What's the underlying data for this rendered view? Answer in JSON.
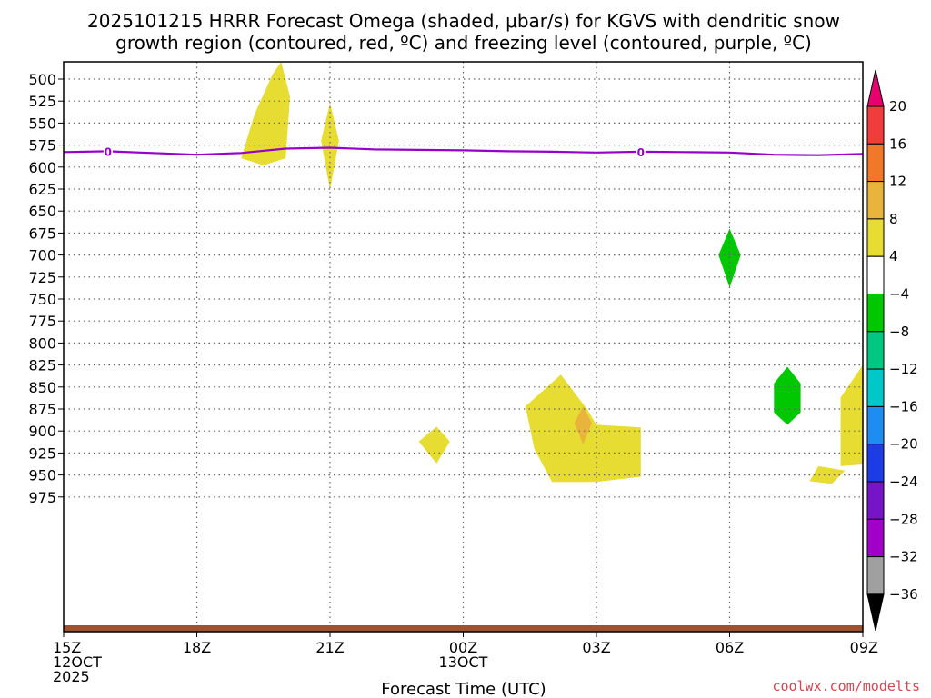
{
  "chart_data": {
    "type": "contour",
    "title_lines": [
      "2025101215 HRRR Forecast Omega (shaded, μbar/s) for KGVS with dendritic snow",
      "growth region (contoured, red, ºC) and freezing level (contoured, purple, ºC)"
    ],
    "xlabel": "Forecast Time (UTC)",
    "credit": "coolwx.com/modelts",
    "y_ticks": [
      500,
      525,
      550,
      575,
      600,
      625,
      650,
      675,
      700,
      725,
      750,
      775,
      800,
      825,
      850,
      875,
      900,
      925,
      950,
      975
    ],
    "x_ticks": [
      {
        "h": 0,
        "lines": [
          "15Z",
          "12OCT",
          "2025"
        ]
      },
      {
        "h": 3,
        "lines": [
          "18Z"
        ]
      },
      {
        "h": 6,
        "lines": [
          "21Z"
        ]
      },
      {
        "h": 9,
        "lines": [
          "00Z",
          "13OCT"
        ]
      },
      {
        "h": 12,
        "lines": [
          "03Z"
        ]
      },
      {
        "h": 15,
        "lines": [
          "06Z"
        ]
      },
      {
        "h": 18,
        "lines": [
          "09Z"
        ]
      }
    ],
    "colorbar": {
      "labels": [
        "20",
        "16",
        "12",
        "8",
        "4",
        "−4",
        "−8",
        "−12",
        "−16",
        "−20",
        "−24",
        "−28",
        "−32",
        "−36"
      ],
      "colors": [
        "#e8006e",
        "#f03c3c",
        "#f07828",
        "#e8b43c",
        "#e6dc32",
        "#ffffff",
        "#00c800",
        "#00c882",
        "#00c8c8",
        "#1e8cf0",
        "#1e3ce6",
        "#7814c8",
        "#a000c8",
        "#a0a0a0",
        "#000000"
      ]
    },
    "freezing_level": {
      "label": "0",
      "color": "#9600c8",
      "points": [
        [
          0,
          583
        ],
        [
          1,
          582
        ],
        [
          2,
          584
        ],
        [
          3,
          586
        ],
        [
          4,
          584
        ],
        [
          5,
          579
        ],
        [
          6,
          578
        ],
        [
          7,
          580
        ],
        [
          8,
          580.5
        ],
        [
          9,
          581
        ],
        [
          10,
          582
        ],
        [
          11,
          582.5
        ],
        [
          12,
          583.5
        ],
        [
          13,
          582.5
        ],
        [
          14,
          583
        ],
        [
          15,
          583.5
        ],
        [
          16,
          586
        ],
        [
          17,
          586.5
        ],
        [
          18,
          585
        ]
      ],
      "label_hours": [
        1,
        13
      ]
    },
    "omega_regions": [
      {
        "value_color": "#e6dc32",
        "points": [
          [
            4.7,
            495
          ],
          [
            4.3,
            540
          ],
          [
            4.0,
            590
          ],
          [
            4.5,
            598
          ],
          [
            5.0,
            590
          ],
          [
            5.1,
            520
          ],
          [
            4.9,
            480
          ]
        ]
      },
      {
        "value_color": "#e6dc32",
        "points": [
          [
            6.0,
            527
          ],
          [
            5.8,
            570
          ],
          [
            6.0,
            626
          ],
          [
            6.2,
            570
          ]
        ]
      },
      {
        "value_color": "#00c800",
        "points": [
          [
            15.0,
            670
          ],
          [
            14.75,
            700
          ],
          [
            15.0,
            737
          ],
          [
            15.25,
            700
          ]
        ]
      },
      {
        "value_color": "#00c800",
        "points": [
          [
            16.3,
            827
          ],
          [
            16.0,
            846
          ],
          [
            16.0,
            879
          ],
          [
            16.3,
            893
          ],
          [
            16.6,
            879
          ],
          [
            16.6,
            846
          ]
        ]
      },
      {
        "value_color": "#e6dc32",
        "points": [
          [
            8.0,
            912
          ],
          [
            8.4,
            895
          ],
          [
            8.7,
            912
          ],
          [
            8.4,
            937
          ]
        ]
      },
      {
        "value_color": "#e6dc32",
        "points": [
          [
            11.2,
            836
          ],
          [
            10.4,
            872
          ],
          [
            10.6,
            920
          ],
          [
            11.0,
            958
          ],
          [
            12.0,
            958
          ],
          [
            13.0,
            952
          ],
          [
            13.0,
            896
          ],
          [
            12.0,
            893
          ],
          [
            11.8,
            876
          ]
        ]
      },
      {
        "value_color": "#e8b43c",
        "points": [
          [
            11.7,
            872
          ],
          [
            11.5,
            891
          ],
          [
            11.7,
            915
          ],
          [
            11.9,
            891
          ]
        ]
      },
      {
        "value_color": "#e6dc32",
        "points": [
          [
            18.0,
            825
          ],
          [
            17.5,
            862
          ],
          [
            17.5,
            940
          ],
          [
            18.0,
            938
          ]
        ]
      },
      {
        "value_color": "#e6dc32",
        "points": [
          [
            17.0,
            940
          ],
          [
            16.8,
            957
          ],
          [
            17.3,
            960
          ],
          [
            17.6,
            945
          ]
        ]
      }
    ],
    "terrain_color": "#a0522d"
  }
}
